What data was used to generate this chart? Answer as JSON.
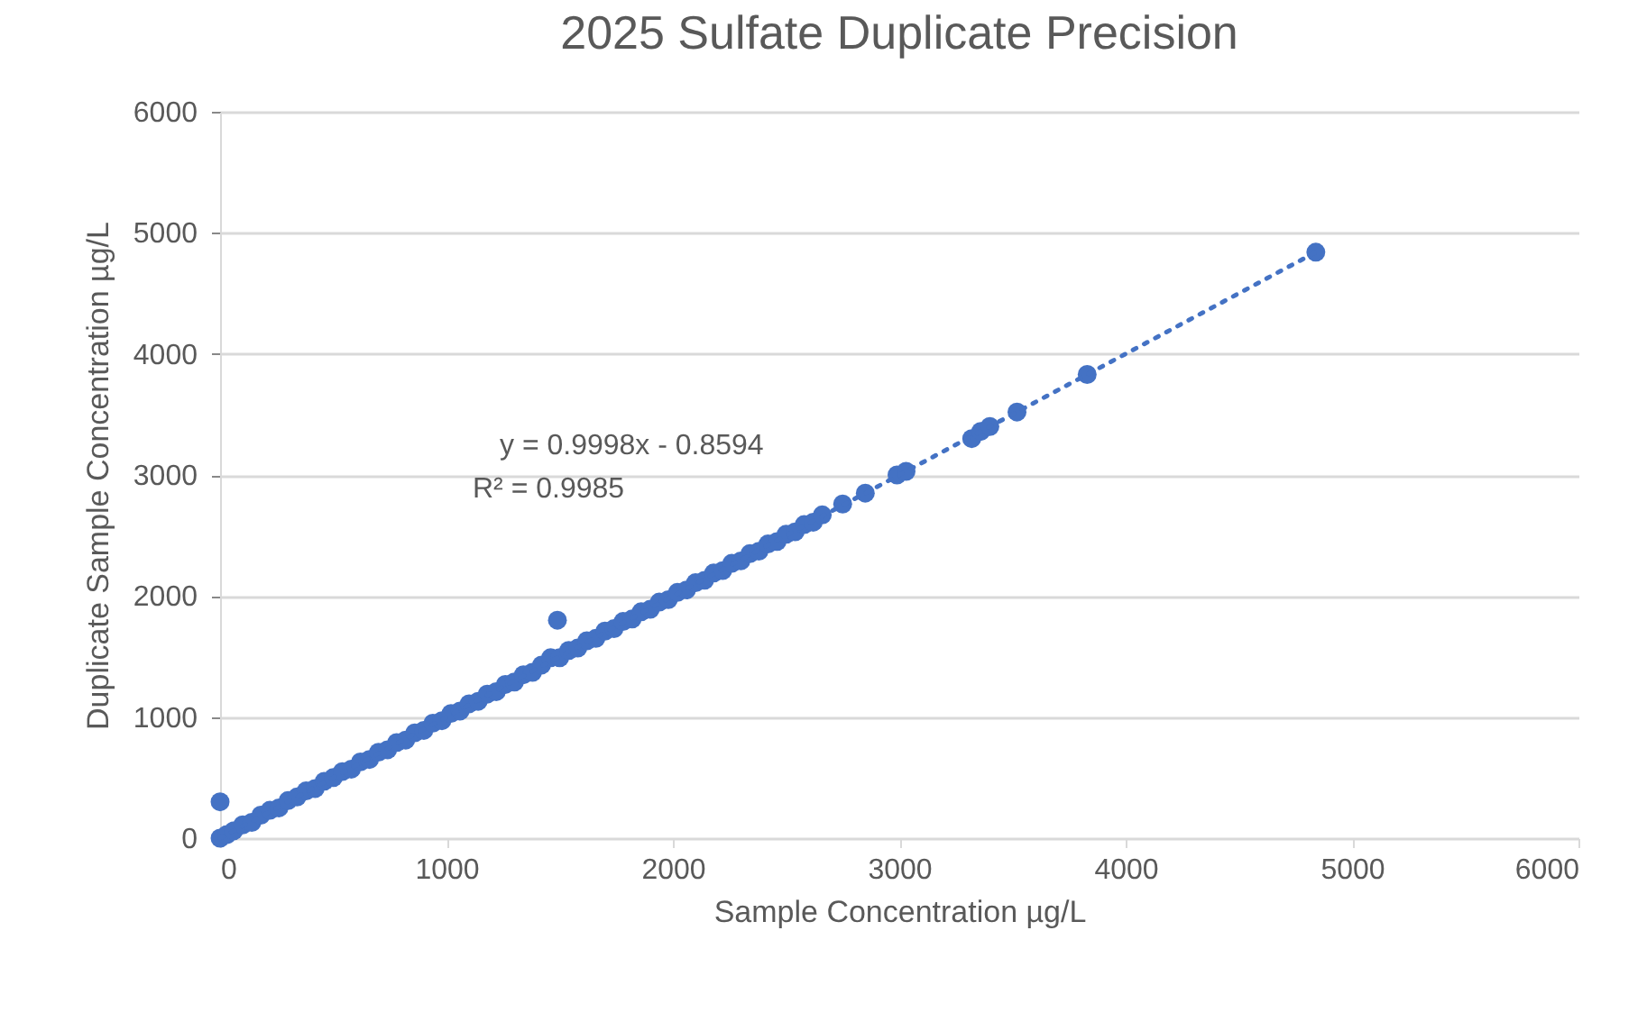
{
  "chart_data": {
    "type": "scatter",
    "title": "2025 Sulfate Duplicate Precision",
    "xlabel": "Sample Concentration µg/L",
    "ylabel": "Duplicate Sample Concentration µg/L",
    "xlim": [
      0,
      6000
    ],
    "ylim": [
      0,
      6000
    ],
    "xticks": [
      0,
      1000,
      2000,
      3000,
      4000,
      5000,
      6000
    ],
    "yticks": [
      0,
      1000,
      2000,
      3000,
      4000,
      5000,
      6000
    ],
    "grid": "y",
    "annotations": [
      "y = 0.9998x - 0.8594",
      "R² = 0.9985"
    ],
    "series": [
      {
        "color": "#4472c4",
        "marker": "circle",
        "x": [
          0,
          0,
          30,
          60,
          100,
          140,
          180,
          220,
          260,
          300,
          340,
          380,
          420,
          460,
          500,
          540,
          580,
          620,
          660,
          700,
          740,
          780,
          820,
          860,
          900,
          940,
          980,
          1020,
          1060,
          1100,
          1140,
          1180,
          1220,
          1260,
          1300,
          1340,
          1380,
          1420,
          1460,
          1490,
          1500,
          1540,
          1580,
          1620,
          1660,
          1700,
          1740,
          1780,
          1820,
          1860,
          1900,
          1940,
          1980,
          2020,
          2060,
          2100,
          2140,
          2180,
          2220,
          2260,
          2300,
          2340,
          2380,
          2420,
          2460,
          2500,
          2540,
          2580,
          2620,
          2660,
          2750,
          2850,
          2990,
          3030,
          3320,
          3360,
          3400,
          3520,
          3830,
          4840
        ],
        "values": [
          0,
          300,
          30,
          60,
          110,
          130,
          190,
          230,
          250,
          310,
          340,
          390,
          410,
          470,
          500,
          550,
          570,
          630,
          650,
          710,
          730,
          790,
          810,
          870,
          890,
          950,
          970,
          1030,
          1050,
          1110,
          1130,
          1190,
          1210,
          1270,
          1290,
          1350,
          1370,
          1430,
          1490,
          1800,
          1490,
          1550,
          1570,
          1630,
          1650,
          1710,
          1730,
          1790,
          1810,
          1870,
          1890,
          1950,
          1970,
          2030,
          2050,
          2110,
          2130,
          2190,
          2210,
          2270,
          2290,
          2350,
          2370,
          2430,
          2450,
          2510,
          2530,
          2590,
          2610,
          2670,
          2760,
          2850,
          3000,
          3030,
          3300,
          3360,
          3400,
          3520,
          3830,
          4840
        ]
      },
      {
        "type": "line",
        "color": "#4472c4",
        "line_style": "dotted",
        "x": [
          0,
          4840
        ],
        "values": [
          0,
          4840
        ]
      }
    ]
  }
}
